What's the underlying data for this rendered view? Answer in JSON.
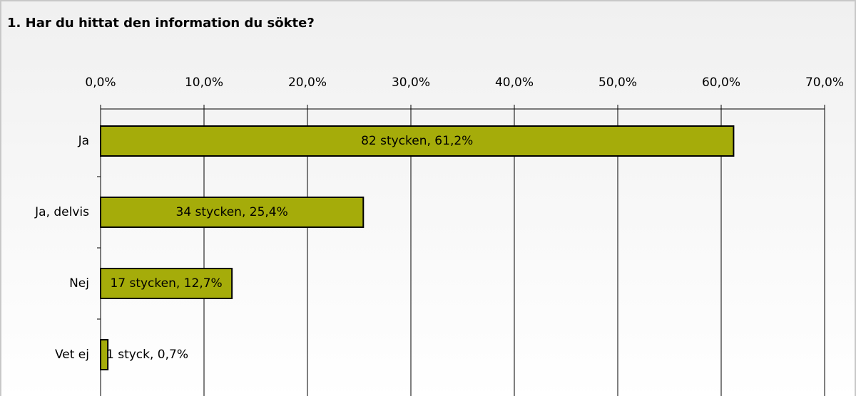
{
  "chart_data": {
    "type": "bar",
    "orientation": "horizontal",
    "title": "1. Har du hittat den information du sökte?",
    "categories": [
      "Ja",
      "Ja, delvis",
      "Nej",
      "Vet ej"
    ],
    "values": [
      61.2,
      25.4,
      12.7,
      0.7
    ],
    "value_labels": [
      "82 stycken, 61,2%",
      "34 stycken, 25,4%",
      "17 stycken, 12,7%",
      "1 styck, 0,7%"
    ],
    "color": "#a5ac0a",
    "xlim": [
      0,
      70
    ],
    "xticks": [
      {
        "value": 0,
        "label": "0,0%"
      },
      {
        "value": 10,
        "label": "10,0%"
      },
      {
        "value": 20,
        "label": "20,0%"
      },
      {
        "value": 30,
        "label": "30,0%"
      },
      {
        "value": 40,
        "label": "40,0%"
      },
      {
        "value": 50,
        "label": "50,0%"
      },
      {
        "value": 60,
        "label": "60,0%"
      },
      {
        "value": 70,
        "label": "70,0%"
      }
    ],
    "grid": true
  }
}
